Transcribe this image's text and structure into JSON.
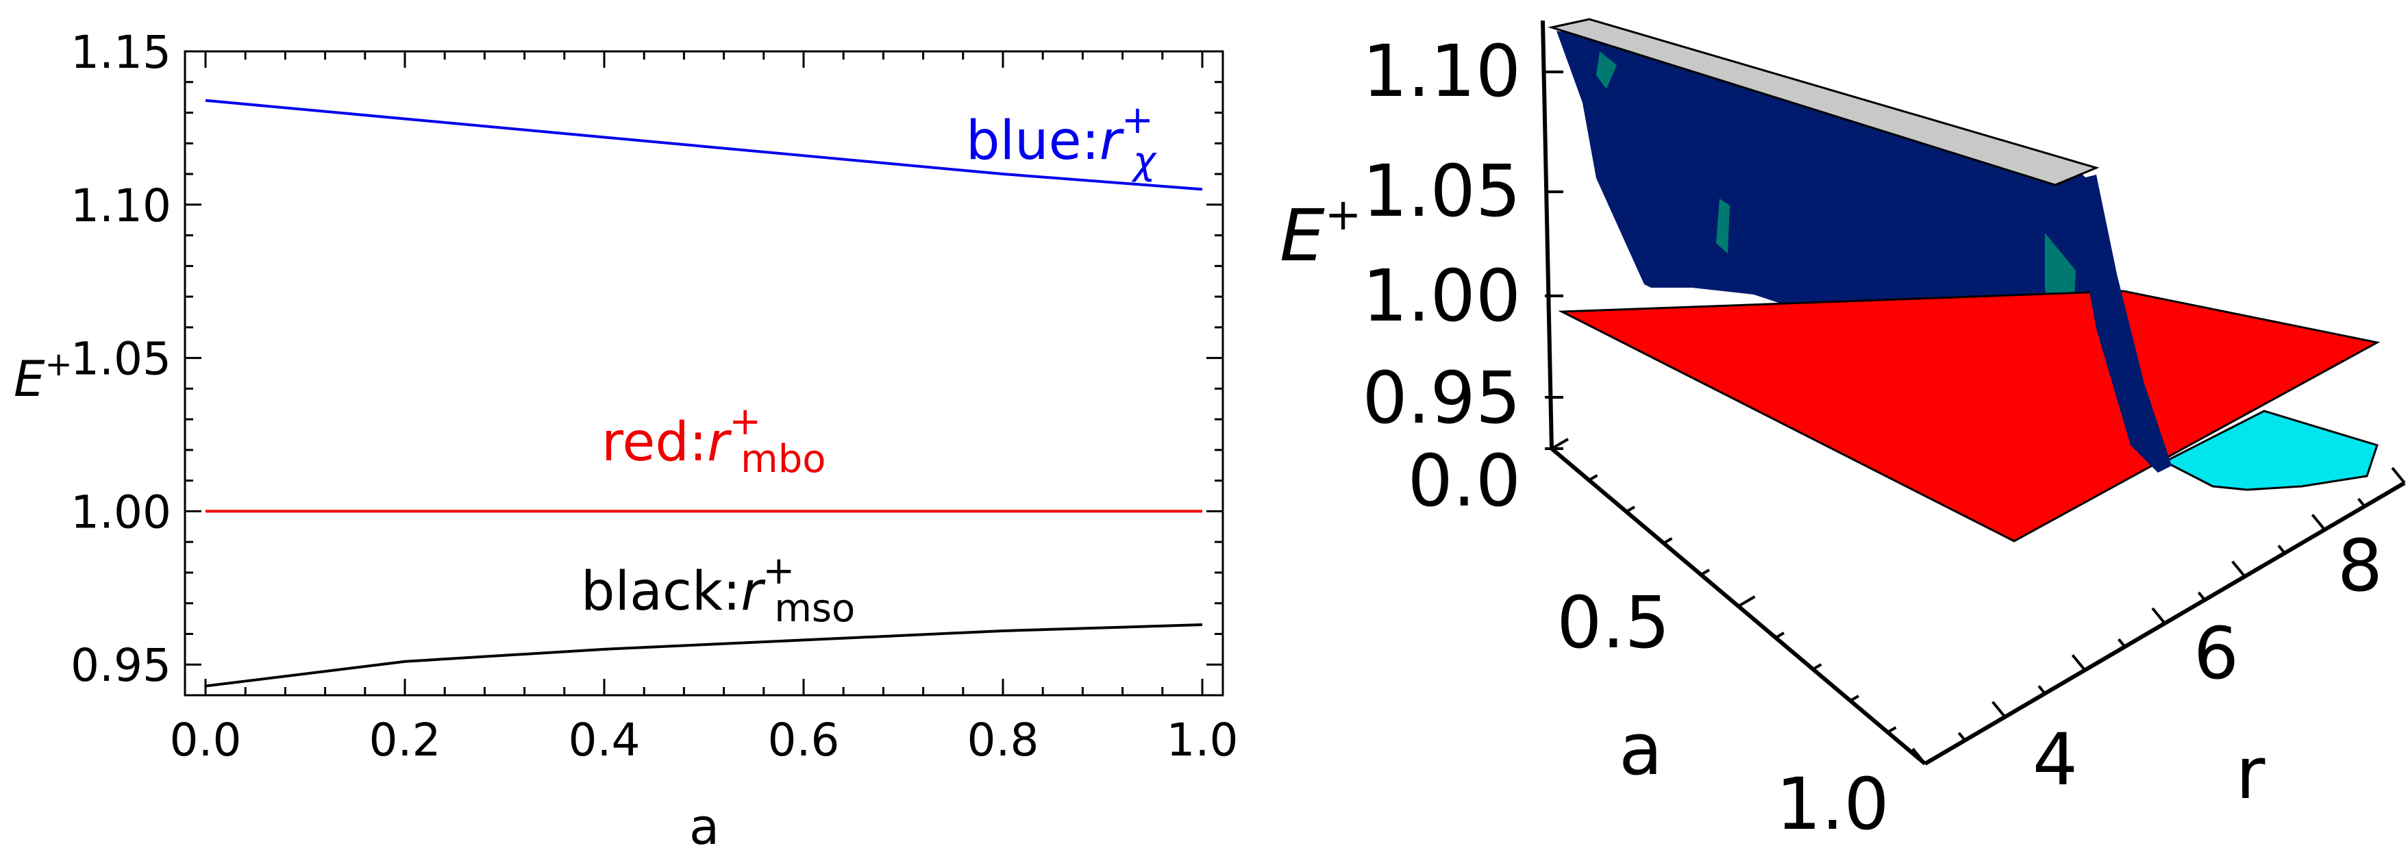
{
  "chart_data": [
    {
      "type": "line",
      "xlabel": "a",
      "ylabel": "E",
      "ylabel_sup": "+",
      "xlim": [
        0.0,
        1.0
      ],
      "ylim": [
        0.94,
        1.15
      ],
      "x_ticks": [
        "0.0",
        "0.2",
        "0.4",
        "0.6",
        "0.8",
        "1.0"
      ],
      "y_ticks": [
        "0.95",
        "1.00",
        "1.05",
        "1.10",
        "1.15"
      ],
      "series": [
        {
          "name": "blue:r⁺χ",
          "color": "#0000ee",
          "x": [
            0.0,
            0.2,
            0.4,
            0.6,
            0.8,
            1.0
          ],
          "y": [
            1.134,
            1.128,
            1.122,
            1.116,
            1.11,
            1.105
          ]
        },
        {
          "name": "red:r⁺mbo",
          "color": "#ee0000",
          "x": [
            0.0,
            0.2,
            0.4,
            0.6,
            0.8,
            1.0
          ],
          "y": [
            1.0,
            1.0,
            1.0,
            1.0,
            1.0,
            1.0
          ]
        },
        {
          "name": "black:r⁺mso",
          "color": "#000000",
          "x": [
            0.0,
            0.2,
            0.4,
            0.6,
            0.8,
            1.0
          ],
          "y": [
            0.943,
            0.951,
            0.955,
            0.958,
            0.961,
            0.963
          ]
        }
      ],
      "annotations": [
        {
          "text": "blue:",
          "var": "r",
          "sup": "+",
          "sub": "χ",
          "color": "#0000ee"
        },
        {
          "text": "red:",
          "var": "r",
          "sup": "+",
          "sub": "mbo",
          "color": "#ee0000"
        },
        {
          "text": "black:",
          "var": "r",
          "sup": "+",
          "sub": "mso",
          "color": "#000000"
        }
      ],
      "grid": false,
      "frame": true
    },
    {
      "type": "surface3d",
      "zlabel": "E",
      "zlabel_sup": "+",
      "xlabel": "a",
      "ylabel": "r",
      "z_ticks": [
        "1.10",
        "1.05",
        "1.00",
        "0.95",
        "0.0"
      ],
      "a_ticks": [
        "0.5",
        "1.0"
      ],
      "r_ticks": [
        "4",
        "6",
        "8"
      ],
      "surface_colors": {
        "blue_surface": "#001a6e",
        "red_plane": "#ff0000",
        "cyan_patch": "#00e5ee",
        "gray_top": "#c8c8c8",
        "teal_spots": "#007a70"
      }
    }
  ]
}
